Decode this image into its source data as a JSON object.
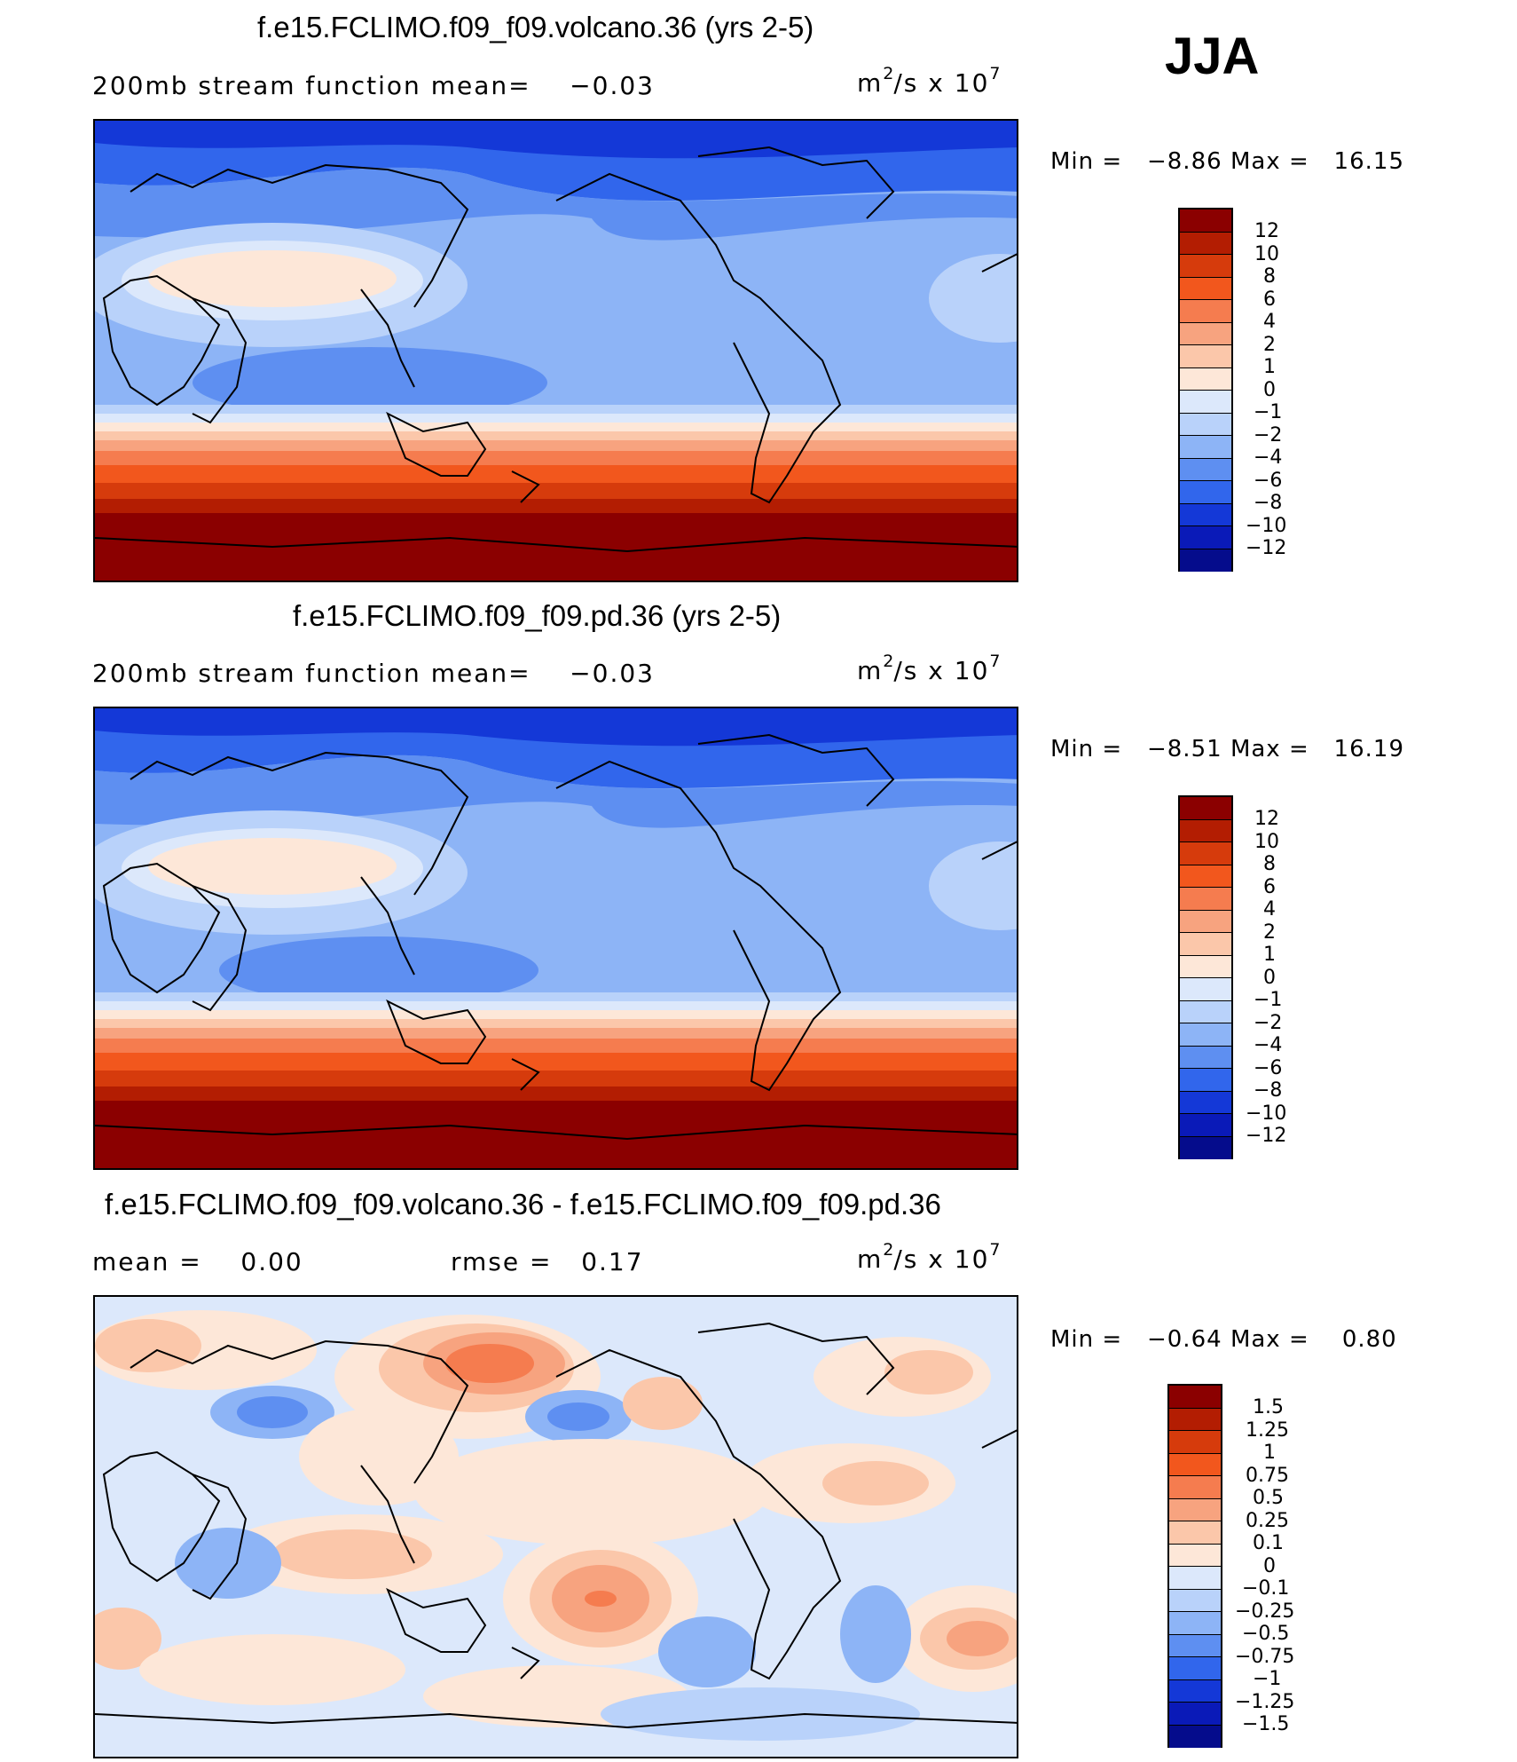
{
  "season": "JJA",
  "panels": [
    {
      "id": "volcano",
      "title": "f.e15.FCLIMO.f09_f09.volcano.36 (yrs 2-5)",
      "left_text": "200mb stream function   mean=",
      "mean_value": "−0.03",
      "middle_text": "",
      "middle_value": "",
      "units": {
        "base": "m",
        "exp1": "2",
        "mid": "/s x 10",
        "exp2": "7"
      },
      "min_label": "Min =",
      "min_value": "−8.86",
      "max_label": "Max =",
      "max_value": "16.15",
      "colorbar": {
        "labels": [
          "12",
          "10",
          "8",
          "6",
          "4",
          "2",
          "1",
          "0",
          "−1",
          "−2",
          "−4",
          "−6",
          "−8",
          "−10",
          "−12"
        ],
        "colors": [
          "#8b0000",
          "#b31d02",
          "#d63b0c",
          "#f2571d",
          "#f57c4f",
          "#f7a37f",
          "#fbc7aa",
          "#fde7d8",
          "#dce8fb",
          "#b9d2fa",
          "#8db4f6",
          "#5e8ff1",
          "#3166ec",
          "#1438d7",
          "#0a1ab8",
          "#050c8c"
        ]
      },
      "chart_data": {
        "type": "heatmap",
        "field": "200mb stream function",
        "season": "JJA",
        "units": "m2/s x 10^7",
        "mean": -0.03,
        "min": -8.86,
        "max": 16.15,
        "contour_levels": [
          -12,
          -10,
          -8,
          -6,
          -4,
          -2,
          -1,
          0,
          1,
          2,
          4,
          6,
          8,
          10,
          12
        ],
        "zonal_pattern": "negative (blue) in Northern Hemisphere, strongly positive (red) south of ~30S"
      }
    },
    {
      "id": "pd",
      "title": "f.e15.FCLIMO.f09_f09.pd.36 (yrs 2-5)",
      "left_text": "200mb stream function   mean=",
      "mean_value": "−0.03",
      "middle_text": "",
      "middle_value": "",
      "units": {
        "base": "m",
        "exp1": "2",
        "mid": "/s x 10",
        "exp2": "7"
      },
      "min_label": "Min =",
      "min_value": "−8.51",
      "max_label": "Max =",
      "max_value": "16.19",
      "colorbar": {
        "labels": [
          "12",
          "10",
          "8",
          "6",
          "4",
          "2",
          "1",
          "0",
          "−1",
          "−2",
          "−4",
          "−6",
          "−8",
          "−10",
          "−12"
        ],
        "colors": [
          "#8b0000",
          "#b31d02",
          "#d63b0c",
          "#f2571d",
          "#f57c4f",
          "#f7a37f",
          "#fbc7aa",
          "#fde7d8",
          "#dce8fb",
          "#b9d2fa",
          "#8db4f6",
          "#5e8ff1",
          "#3166ec",
          "#1438d7",
          "#0a1ab8",
          "#050c8c"
        ]
      },
      "chart_data": {
        "type": "heatmap",
        "field": "200mb stream function",
        "season": "JJA",
        "units": "m2/s x 10^7",
        "mean": -0.03,
        "min": -8.51,
        "max": 16.19,
        "contour_levels": [
          -12,
          -10,
          -8,
          -6,
          -4,
          -2,
          -1,
          0,
          1,
          2,
          4,
          6,
          8,
          10,
          12
        ]
      }
    },
    {
      "id": "diff",
      "title": "f.e15.FCLIMO.f09_f09.volcano.36 - f.e15.FCLIMO.f09_f09.pd.36",
      "left_text": "mean =",
      "mean_value": "0.00",
      "middle_text": "rmse =",
      "middle_value": "0.17",
      "units": {
        "base": "m",
        "exp1": "2",
        "mid": "/s x 10",
        "exp2": "7"
      },
      "min_label": "Min =",
      "min_value": "−0.64",
      "max_label": "Max =",
      "max_value": "0.80",
      "colorbar": {
        "labels": [
          "1.5",
          "1.25",
          "1",
          "0.75",
          "0.5",
          "0.25",
          "0.1",
          "0",
          "−0.1",
          "−0.25",
          "−0.5",
          "−0.75",
          "−1",
          "−1.25",
          "−1.5"
        ],
        "colors": [
          "#8b0000",
          "#b31d02",
          "#d63b0c",
          "#f2571d",
          "#f57c4f",
          "#f7a37f",
          "#fbc7aa",
          "#fde7d8",
          "#dce8fb",
          "#b9d2fa",
          "#8db4f6",
          "#5e8ff1",
          "#3166ec",
          "#1438d7",
          "#0a1ab8",
          "#050c8c"
        ]
      },
      "chart_data": {
        "type": "heatmap",
        "field": "200mb stream function difference",
        "season": "JJA",
        "units": "m2/s x 10^7",
        "mean": 0.0,
        "rmse": 0.17,
        "min": -0.64,
        "max": 0.8,
        "contour_levels": [
          -1.5,
          -1.25,
          -1,
          -0.75,
          -0.5,
          -0.25,
          -0.1,
          0,
          0.1,
          0.25,
          0.5,
          0.75,
          1,
          1.25,
          1.5
        ]
      }
    }
  ]
}
